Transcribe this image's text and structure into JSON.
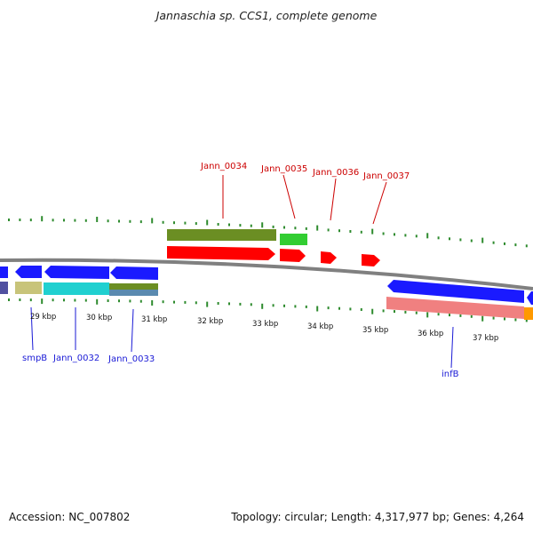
{
  "title": "Jannaschia sp. CCS1, complete genome",
  "footer": {
    "accession": "Accession: NC_007802",
    "summary": "Topology: circular; Length: 4,317,977 bp; Genes: 4,264"
  },
  "kbp_labels": [
    "29 kbp",
    "30 kbp",
    "31 kbp",
    "32 kbp",
    "33 kbp",
    "34 kbp",
    "35 kbp",
    "36 kbp",
    "37 kbp"
  ],
  "top_gene_labels": [
    "Jann_0034",
    "Jann_0035",
    "Jann_0036",
    "Jann_0037"
  ],
  "bottom_gene_labels": [
    "smpB",
    "Jann_0032",
    "Jann_0033",
    "infB"
  ],
  "colors": {
    "backbone": "#808080",
    "tick": "#2e8b2e",
    "forward_gene": "#ff0000",
    "reverse_gene": "#1a1aff",
    "olive": "#6b8e23",
    "green": "#32cd32",
    "khaki": "#c8c47a",
    "cyan": "#20d0d0",
    "pink": "#f08080",
    "orange": "#ff9900",
    "purple": "#5050a0"
  }
}
